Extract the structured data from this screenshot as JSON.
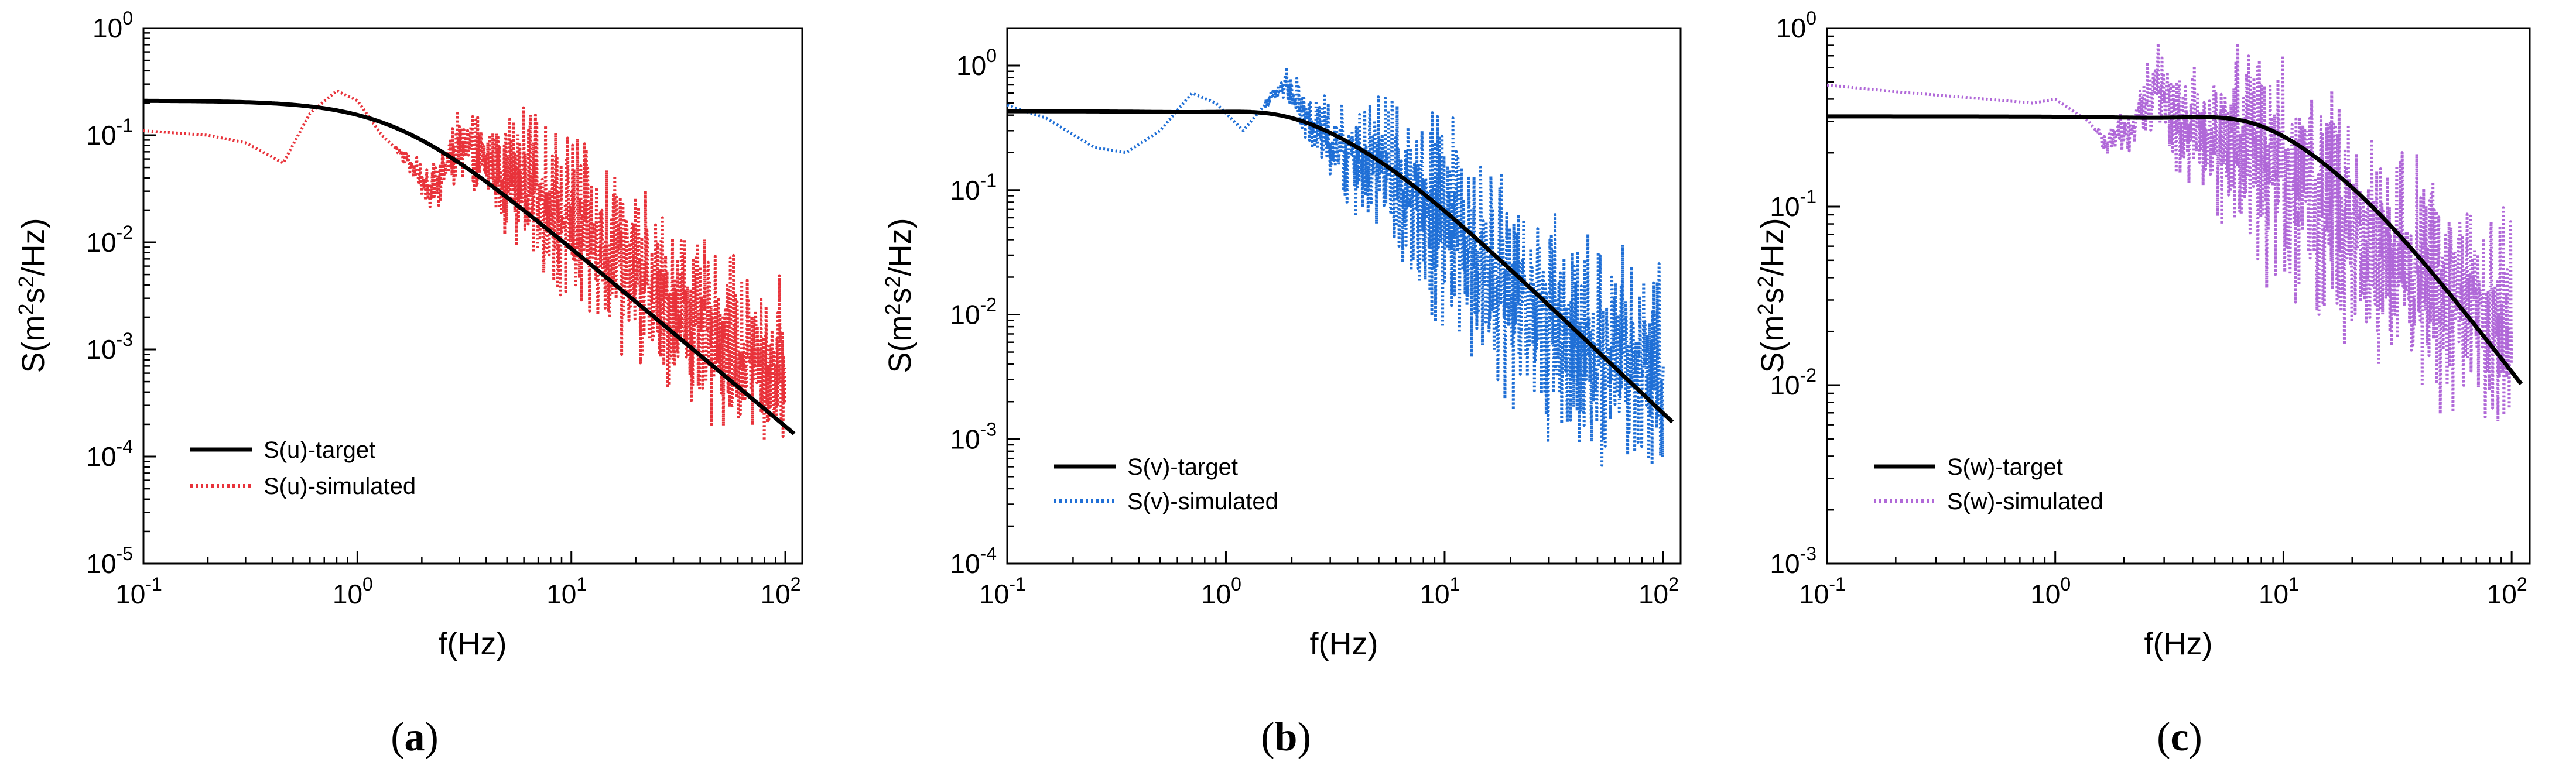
{
  "chart_data": [
    {
      "type": "line",
      "panel": "a",
      "caption": "(a)",
      "caption_letter": "a",
      "xscale": "log",
      "yscale": "log",
      "xlabel": "f(Hz)",
      "ylabel": "S(m²s²/Hz)",
      "xlim": [
        0.1,
        120
      ],
      "ylim": [
        1e-05,
        1
      ],
      "x_ticks": [
        {
          "base": "10",
          "exp": "-1"
        },
        {
          "base": "10",
          "exp": "0"
        },
        {
          "base": "10",
          "exp": "1"
        },
        {
          "base": "10",
          "exp": "2"
        }
      ],
      "y_ticks": [
        {
          "base": "10",
          "exp": "-5"
        },
        {
          "base": "10",
          "exp": "-4"
        },
        {
          "base": "10",
          "exp": "-3"
        },
        {
          "base": "10",
          "exp": "-2"
        },
        {
          "base": "10",
          "exp": "-1"
        },
        {
          "base": "10",
          "exp": "0"
        }
      ],
      "legend_position": "bottom-left",
      "target": {
        "name": "S(u)-target",
        "color": "#000000",
        "style": "solid",
        "plateau": 0.21,
        "fc": 1.5,
        "slope": 1.667
      },
      "simulated": {
        "name": "S(u)-simulated",
        "color": "#e8323a",
        "style": "dotted",
        "anchors": [
          [
            0.1,
            0.11
          ],
          [
            0.2,
            0.1
          ],
          [
            0.3,
            0.085
          ],
          [
            0.45,
            0.055
          ],
          [
            0.6,
            0.16
          ],
          [
            0.8,
            0.26
          ],
          [
            1.0,
            0.21
          ],
          [
            1.3,
            0.1
          ],
          [
            1.7,
            0.06
          ],
          [
            2.2,
            0.03
          ],
          [
            3.0,
            0.08
          ],
          [
            4.0,
            0.05
          ],
          [
            6.0,
            0.04
          ],
          [
            10,
            0.015
          ],
          [
            15,
            0.008
          ],
          [
            20,
            0.005
          ],
          [
            30,
            0.0025
          ],
          [
            50,
            0.0012
          ],
          [
            70,
            0.0008
          ],
          [
            100,
            0.0007
          ]
        ],
        "jitter": 0.55
      }
    },
    {
      "type": "line",
      "panel": "b",
      "caption": "(b)",
      "caption_letter": "b",
      "xscale": "log",
      "yscale": "log",
      "xlabel": "f(Hz)",
      "ylabel": "S(m²s²/Hz)",
      "xlim": [
        0.1,
        120
      ],
      "ylim": [
        0.0001,
        2
      ],
      "x_ticks": [
        {
          "base": "10",
          "exp": "-1"
        },
        {
          "base": "10",
          "exp": "0"
        },
        {
          "base": "10",
          "exp": "1"
        },
        {
          "base": "10",
          "exp": "2"
        }
      ],
      "y_ticks": [
        {
          "base": "10",
          "exp": "-4"
        },
        {
          "base": "10",
          "exp": "-3"
        },
        {
          "base": "10",
          "exp": "-2"
        },
        {
          "base": "10",
          "exp": "-1"
        },
        {
          "base": "10",
          "exp": "0"
        }
      ],
      "legend_position": "bottom-left",
      "target": {
        "name": "S(v)-target",
        "color": "#000000",
        "style": "solid",
        "plateau": 0.43,
        "fc": 3.5,
        "slope": 1.667,
        "bump": 0.12
      },
      "simulated": {
        "name": "S(v)-simulated",
        "color": "#1f6fd6",
        "style": "dotted",
        "anchors": [
          [
            0.1,
            0.48
          ],
          [
            0.15,
            0.38
          ],
          [
            0.25,
            0.22
          ],
          [
            0.35,
            0.2
          ],
          [
            0.5,
            0.3
          ],
          [
            0.7,
            0.6
          ],
          [
            0.9,
            0.5
          ],
          [
            1.2,
            0.3
          ],
          [
            1.6,
            0.55
          ],
          [
            1.9,
            0.7
          ],
          [
            2.5,
            0.3
          ],
          [
            3.5,
            0.2
          ],
          [
            5,
            0.15
          ],
          [
            8,
            0.08
          ],
          [
            12,
            0.04
          ],
          [
            20,
            0.015
          ],
          [
            30,
            0.008
          ],
          [
            50,
            0.005
          ],
          [
            70,
            0.004
          ],
          [
            100,
            0.004
          ]
        ],
        "jitter": 0.6
      }
    },
    {
      "type": "line",
      "panel": "c",
      "caption": "(c)",
      "caption_letter": "c",
      "xscale": "log",
      "yscale": "log",
      "xlabel": "f(Hz)",
      "ylabel": "S(m²s²/Hz)",
      "xlim": [
        0.1,
        120
      ],
      "ylim": [
        0.001,
        1
      ],
      "x_ticks": [
        {
          "base": "10",
          "exp": "-1"
        },
        {
          "base": "10",
          "exp": "0"
        },
        {
          "base": "10",
          "exp": "1"
        },
        {
          "base": "10",
          "exp": "2"
        }
      ],
      "y_ticks": [
        {
          "base": "10",
          "exp": "-3"
        },
        {
          "base": "10",
          "exp": "-2"
        },
        {
          "base": "10",
          "exp": "-1"
        },
        {
          "base": "10",
          "exp": "0"
        }
      ],
      "legend_position": "bottom-left",
      "target": {
        "name": "S(w)-target",
        "color": "#000000",
        "style": "solid",
        "plateau": 0.32,
        "fc": 14,
        "slope": 1.667,
        "bump": 0.12
      },
      "simulated": {
        "name": "S(w)-simulated",
        "color": "#b068d8",
        "style": "dotted",
        "anchors": [
          [
            0.1,
            0.48
          ],
          [
            0.2,
            0.44
          ],
          [
            0.5,
            0.4
          ],
          [
            0.8,
            0.38
          ],
          [
            1.0,
            0.4
          ],
          [
            1.4,
            0.3
          ],
          [
            1.7,
            0.22
          ],
          [
            2.2,
            0.3
          ],
          [
            2.8,
            0.5
          ],
          [
            3.5,
            0.3
          ],
          [
            5,
            0.25
          ],
          [
            7,
            0.2
          ],
          [
            10,
            0.15
          ],
          [
            15,
            0.1
          ],
          [
            20,
            0.08
          ],
          [
            30,
            0.05
          ],
          [
            50,
            0.03
          ],
          [
            70,
            0.025
          ],
          [
            100,
            0.02
          ]
        ],
        "jitter": 0.45
      }
    }
  ]
}
